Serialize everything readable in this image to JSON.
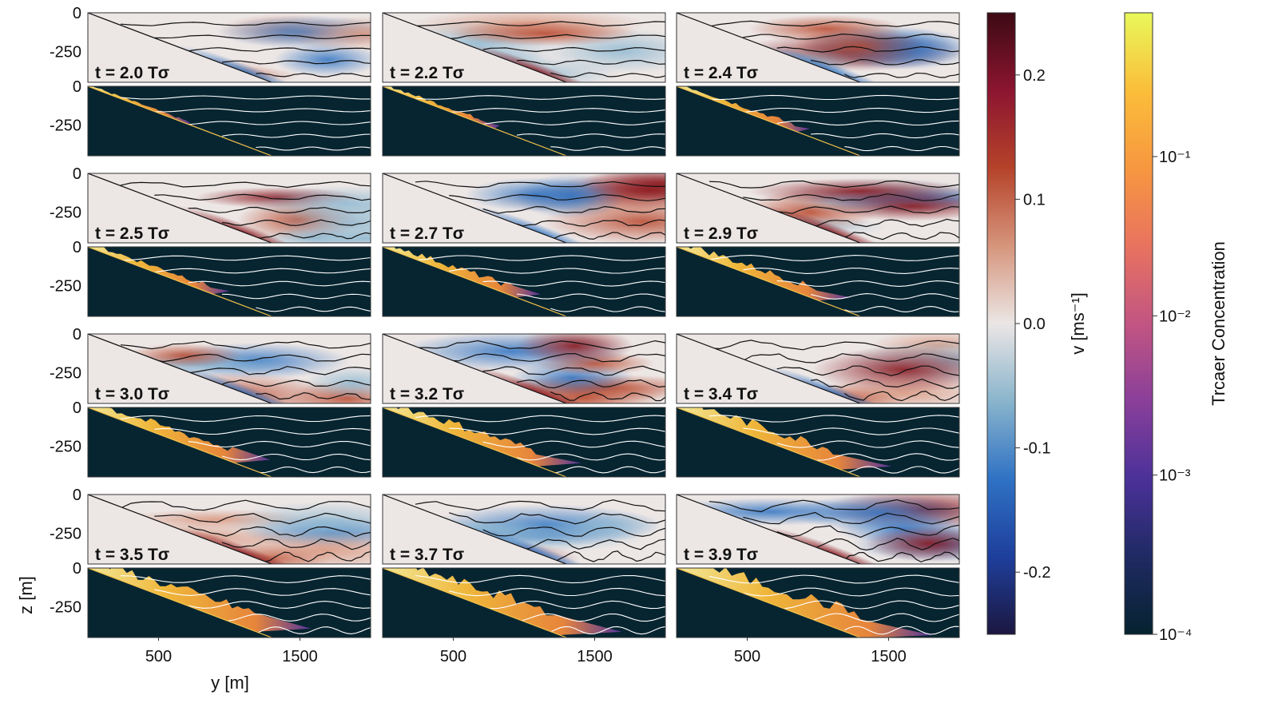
{
  "chart_data": {
    "type": "heatmap",
    "layout": "4 x 3 grid of panel pairs; each pair has a velocity panel (top) and a tracer panel (bottom)",
    "y_axis": {
      "label": "y [m]",
      "ticks": [
        500,
        1500
      ],
      "range": [
        0,
        2000
      ]
    },
    "z_axis": {
      "label": "z [m]",
      "ticks": [
        "0",
        "-250"
      ],
      "range": [
        -450,
        0
      ]
    },
    "slope": "linear sloping bottom from (y=0, z=0) to (y≈1300, z≈-450)",
    "panels": [
      {
        "time_label": "t = 2.0 Tσ",
        "t": 2.0
      },
      {
        "time_label": "t = 2.2 Tσ",
        "t": 2.2
      },
      {
        "time_label": "t = 2.4 Tσ",
        "t": 2.4
      },
      {
        "time_label": "t = 2.5 Tσ",
        "t": 2.5
      },
      {
        "time_label": "t = 2.7 Tσ",
        "t": 2.7
      },
      {
        "time_label": "t = 2.9 Tσ",
        "t": 2.9
      },
      {
        "time_label": "t = 3.0 Tσ",
        "t": 3.0
      },
      {
        "time_label": "t = 3.2 Tσ",
        "t": 3.2
      },
      {
        "time_label": "t = 3.4 Tσ",
        "t": 3.4
      },
      {
        "time_label": "t = 3.5 Tσ",
        "t": 3.5
      },
      {
        "time_label": "t = 3.7 Tσ",
        "t": 3.7
      },
      {
        "time_label": "t = 3.9 Tσ",
        "t": 3.9
      }
    ],
    "colorbar_velocity": {
      "label": "v [ms⁻¹]",
      "range": [
        -0.25,
        0.25
      ],
      "ticks": [
        0.2,
        0.1,
        0.0,
        -0.1,
        -0.2
      ],
      "tick_labels": [
        "0.2",
        "0.1",
        "0.0",
        "-0.1",
        "-0.2"
      ],
      "colormap": [
        "#1c1740",
        "#1e3f9c",
        "#2f72c4",
        "#89b4cc",
        "#ebe6e5",
        "#d6957c",
        "#b5432a",
        "#8c1530",
        "#3d0a14"
      ]
    },
    "colorbar_tracer": {
      "label": "Trcaer Concentration",
      "scale": "log",
      "range": [
        0.0001,
        0.8
      ],
      "ticks": [
        0.1,
        0.01,
        0.001,
        0.0001
      ],
      "tick_labels": [
        "10⁻¹",
        "10⁻²",
        "10⁻³",
        "10⁻⁴"
      ],
      "colormap": [
        "#06222f",
        "#1f2a63",
        "#4b3199",
        "#8a3f9a",
        "#c25582",
        "#e8735f",
        "#f79740",
        "#fbbe3a",
        "#e8f85a"
      ]
    }
  },
  "colors": {
    "velocity_background": "#ece6e5",
    "tracer_background": "#062531",
    "contour_velocity": "#111111",
    "contour_tracer": "#ffffff"
  }
}
